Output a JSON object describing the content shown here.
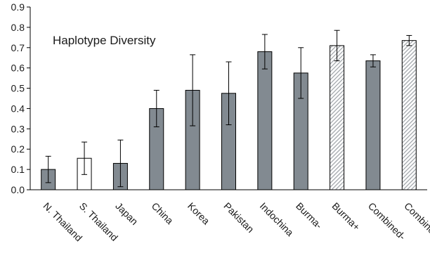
{
  "chart_data": {
    "type": "bar",
    "title": "Haplotype Diversity",
    "xlabel": "",
    "ylabel": "",
    "ylim": [
      0,
      0.9
    ],
    "yticks": [
      "0.0",
      "0.1",
      "0.2",
      "0.3",
      "0.4",
      "0.5",
      "0.6",
      "0.7",
      "0.8",
      "0.9"
    ],
    "grid": false,
    "categories": [
      "N. Thailand",
      "S. Thailand",
      "Japan",
      "China",
      "Korea",
      "Pakistan",
      "Indochina",
      "Burma-",
      "Burma+",
      "Combined-",
      "Combined+"
    ],
    "values": [
      0.1,
      0.155,
      0.13,
      0.4,
      0.49,
      0.475,
      0.68,
      0.575,
      0.71,
      0.635,
      0.735
    ],
    "error": [
      0.065,
      0.08,
      0.115,
      0.09,
      0.175,
      0.155,
      0.085,
      0.125,
      0.075,
      0.03,
      0.025
    ],
    "bar_styles": [
      "solid",
      "open",
      "solid",
      "solid",
      "solid",
      "solid",
      "solid",
      "solid",
      "hatched",
      "solid",
      "hatched"
    ],
    "colors": {
      "solid": "#828a91",
      "open": "#ffffff",
      "hatch": "#9ca1a6"
    }
  }
}
